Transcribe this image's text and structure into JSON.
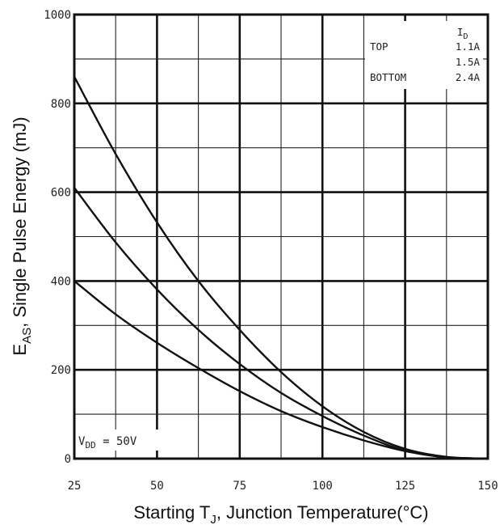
{
  "chart_data": {
    "type": "line",
    "title": "",
    "xlabel": {
      "main": "Starting T",
      "sub": "J",
      "rest": ", Junction Temperature(°C)"
    },
    "ylabel": {
      "main": "E",
      "sub": "AS",
      "rest": ", Single Pulse Energy (mJ)"
    },
    "xlim": [
      25,
      150
    ],
    "ylim": [
      0,
      1000
    ],
    "x_ticks": [
      25,
      50,
      75,
      100,
      125,
      150
    ],
    "y_ticks": [
      0,
      200,
      400,
      600,
      800,
      1000
    ],
    "x_tick_labels": [
      "25",
      "50",
      "75",
      "100",
      "125",
      "150"
    ],
    "y_tick_labels": [
      "0",
      "200",
      "400",
      "600",
      "800",
      "1000"
    ],
    "grid": true,
    "legend": {
      "placement": "top-right",
      "header_main": "I",
      "header_sub": "D",
      "rows": [
        {
          "position": "TOP",
          "current": "1.1A"
        },
        {
          "position": "",
          "current": "1.5A"
        },
        {
          "position": "BOTTOM",
          "current": "2.4A"
        }
      ]
    },
    "annotation": {
      "main": "V",
      "sub": "DD",
      "rest": " = 50V"
    },
    "series": [
      {
        "name": "1.1A",
        "x": [
          25,
          37.5,
          50,
          62.5,
          75,
          87.5,
          100,
          112.5,
          125,
          137.5,
          150
        ],
        "y": [
          860,
          686,
          532,
          400,
          290,
          195,
          118,
          60,
          22,
          4,
          0
        ]
      },
      {
        "name": "1.5A",
        "x": [
          25,
          37.5,
          50,
          62.5,
          75,
          87.5,
          100,
          112.5,
          125,
          137.5,
          150
        ],
        "y": [
          610,
          487,
          381,
          290,
          213,
          148,
          96,
          52,
          18,
          3,
          0
        ]
      },
      {
        "name": "2.4A",
        "x": [
          25,
          37.5,
          50,
          62.5,
          75,
          87.5,
          100,
          112.5,
          125,
          137.5,
          150
        ],
        "y": [
          400,
          325,
          261,
          204,
          152,
          107,
          71,
          41,
          17,
          3,
          0
        ]
      }
    ]
  }
}
